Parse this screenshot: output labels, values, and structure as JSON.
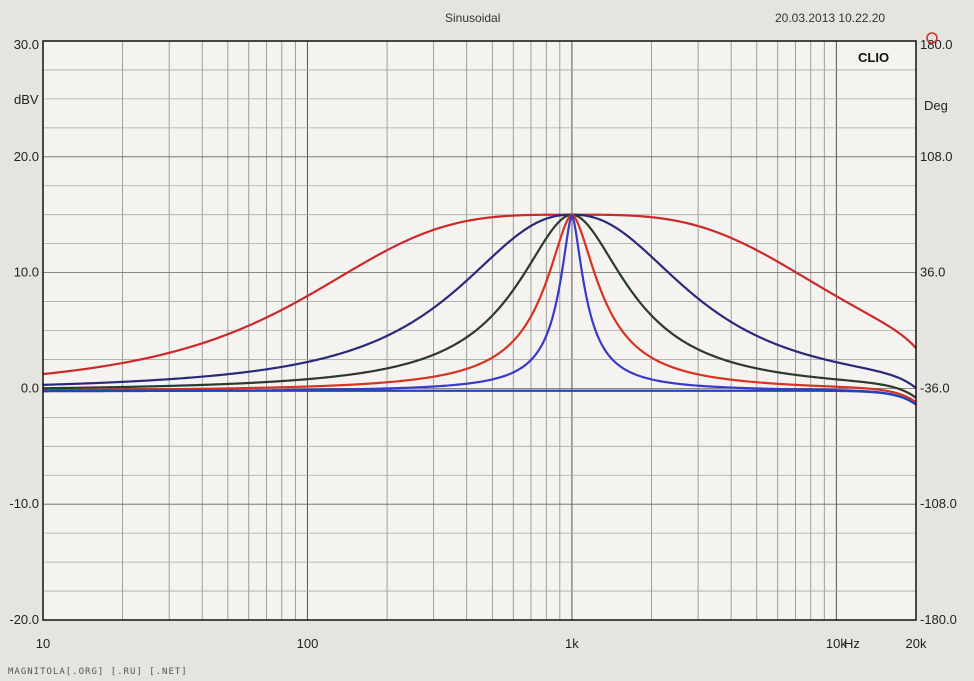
{
  "header": {
    "signal_label": "Sinusoidal",
    "timestamp": "20.03.2013 10.22.20",
    "brand": "CLIO"
  },
  "watermark": "MAGNITOLA[.ORG] [.RU] [.NET]",
  "chart_data": {
    "type": "line",
    "x_scale": "log",
    "xlim": [
      10,
      20000
    ],
    "ylim_left": [
      -20,
      30
    ],
    "ylim_right": [
      -180,
      180
    ],
    "ylabel_left": "dBV",
    "ylabel_right": "Deg",
    "xlabel": "Hz",
    "x_tick_labels": [
      "10",
      "100",
      "1k",
      "10k",
      "20k"
    ],
    "x_tick_values": [
      10,
      100,
      1000,
      10000,
      20000
    ],
    "y_tick_labels_left": [
      "30.0",
      "20.0",
      "10.0",
      "0.0",
      "-10.0",
      "-20.0"
    ],
    "y_tick_values_left": [
      30,
      20,
      10,
      0,
      -10,
      -20
    ],
    "y_tick_labels_right": [
      "180.0",
      "108.0",
      "36.0",
      "-36.0",
      "-108.0",
      "-180.0"
    ],
    "y_tick_values_right": [
      180,
      108,
      36,
      -36,
      -108,
      -180
    ],
    "grid": true,
    "baseline_db": -0.3,
    "series": [
      {
        "color": "#cc2a2a",
        "center_hz": 1000,
        "peak_db": 15,
        "width_decades": 1.05,
        "shape": 1.7,
        "hf_rolloff": true
      },
      {
        "color": "#2a2a7a",
        "center_hz": 1000,
        "peak_db": 15,
        "width_decades": 0.5,
        "shape": 1.15,
        "hf_rolloff": true
      },
      {
        "color": "#2c3a2c",
        "center_hz": 1000,
        "peak_db": 15,
        "width_decades": 0.26,
        "shape": 0.95,
        "hf_rolloff": true
      },
      {
        "color": "#d83222",
        "center_hz": 1000,
        "peak_db": 15,
        "width_decades": 0.13,
        "shape": 0.85,
        "hf_rolloff": true
      },
      {
        "color": "#3a3ac8",
        "center_hz": 1000,
        "peak_db": 15,
        "width_decades": 0.06,
        "shape": 0.8,
        "hf_rolloff": true
      },
      {
        "color": "#2244bb",
        "flat_db": -0.2,
        "hf_rolloff": true
      }
    ]
  }
}
